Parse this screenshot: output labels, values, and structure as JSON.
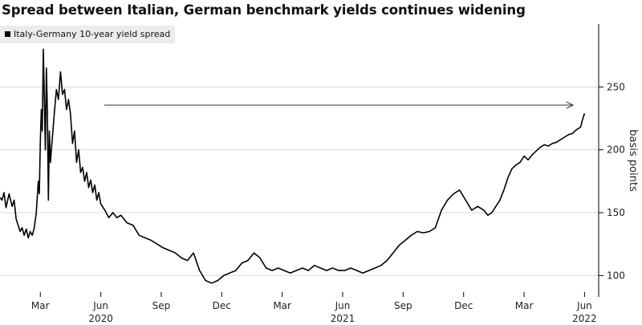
{
  "title": "Spread between Italian, German benchmark yields continues widening",
  "chart_data": {
    "type": "line",
    "legend": "Italy-Germany 10-year yield spread",
    "ylabel": "basis points",
    "ylim": [
      83,
      300
    ],
    "yticks": [
      100,
      150,
      200,
      250
    ],
    "grid": true,
    "x_tick_labels": [
      "Mar",
      "Jun",
      "Sep",
      "Dec",
      "Mar",
      "Jun",
      "Sep",
      "Dec",
      "Mar",
      "Jun"
    ],
    "x_tick_positions": [
      2.0,
      5.0,
      8.0,
      11.0,
      14.0,
      17.0,
      20.0,
      23.0,
      26.0,
      29.0
    ],
    "year_labels": [
      {
        "label": "2020",
        "x": 5.0
      },
      {
        "label": "2021",
        "x": 17.0
      },
      {
        "label": "2022",
        "x": 29.0
      }
    ],
    "x_unit_note": "months from 1 Jan 2020",
    "series": [
      {
        "name": "Italy-Germany 10-year yield spread",
        "x": [
          0.0,
          0.1,
          0.2,
          0.3,
          0.45,
          0.6,
          0.7,
          0.8,
          0.9,
          1.0,
          1.1,
          1.2,
          1.3,
          1.4,
          1.5,
          1.6,
          1.7,
          1.8,
          1.9,
          1.95,
          2.0,
          2.05,
          2.1,
          2.15,
          2.2,
          2.25,
          2.3,
          2.35,
          2.4,
          2.45,
          2.5,
          2.6,
          2.7,
          2.8,
          2.9,
          3.0,
          3.1,
          3.2,
          3.3,
          3.4,
          3.5,
          3.6,
          3.7,
          3.8,
          3.9,
          4.0,
          4.1,
          4.2,
          4.3,
          4.4,
          4.5,
          4.6,
          4.7,
          4.8,
          4.9,
          5.0,
          5.2,
          5.4,
          5.6,
          5.8,
          6.0,
          6.3,
          6.6,
          6.9,
          7.2,
          7.5,
          7.8,
          8.1,
          8.4,
          8.7,
          9.0,
          9.3,
          9.6,
          9.9,
          10.2,
          10.5,
          10.8,
          11.1,
          11.4,
          11.7,
          12.0,
          12.3,
          12.6,
          12.9,
          13.2,
          13.5,
          13.8,
          14.1,
          14.4,
          14.7,
          15.0,
          15.3,
          15.6,
          15.9,
          16.2,
          16.5,
          16.8,
          17.1,
          17.4,
          17.7,
          18.0,
          18.3,
          18.6,
          18.9,
          19.2,
          19.5,
          19.8,
          20.1,
          20.4,
          20.7,
          21.0,
          21.3,
          21.6,
          21.9,
          22.2,
          22.5,
          22.8,
          23.1,
          23.4,
          23.7,
          24.0,
          24.2,
          24.4,
          24.6,
          24.8,
          25.0,
          25.2,
          25.4,
          25.6,
          25.8,
          26.0,
          26.2,
          26.4,
          26.6,
          26.8,
          27.0,
          27.2,
          27.4,
          27.6,
          27.8,
          28.0,
          28.2,
          28.4,
          28.6,
          28.8,
          28.9,
          29.0
        ],
        "values": [
          162,
          160,
          166,
          154,
          165,
          155,
          160,
          145,
          140,
          135,
          138,
          132,
          137,
          130,
          135,
          132,
          138,
          150,
          175,
          165,
          205,
          232,
          215,
          280,
          240,
          200,
          265,
          232,
          160,
          215,
          190,
          210,
          230,
          248,
          240,
          262,
          244,
          248,
          232,
          240,
          228,
          205,
          215,
          190,
          200,
          182,
          186,
          175,
          182,
          170,
          176,
          166,
          172,
          160,
          166,
          157,
          152,
          146,
          150,
          146,
          148,
          142,
          140,
          132,
          130,
          128,
          125,
          122,
          120,
          118,
          114,
          112,
          118,
          104,
          96,
          94,
          96,
          100,
          102,
          104,
          110,
          112,
          118,
          114,
          106,
          104,
          106,
          104,
          102,
          104,
          106,
          104,
          108,
          106,
          104,
          106,
          104,
          104,
          106,
          104,
          102,
          104,
          106,
          108,
          112,
          118,
          124,
          128,
          132,
          135,
          134,
          135,
          138,
          152,
          160,
          165,
          168,
          160,
          152,
          155,
          152,
          148,
          150,
          155,
          160,
          168,
          178,
          185,
          188,
          190,
          195,
          192,
          196,
          199,
          202,
          204,
          203,
          205,
          206,
          208,
          210,
          212,
          213,
          216,
          218,
          224,
          229
        ]
      }
    ],
    "annotation": "arrow"
  }
}
